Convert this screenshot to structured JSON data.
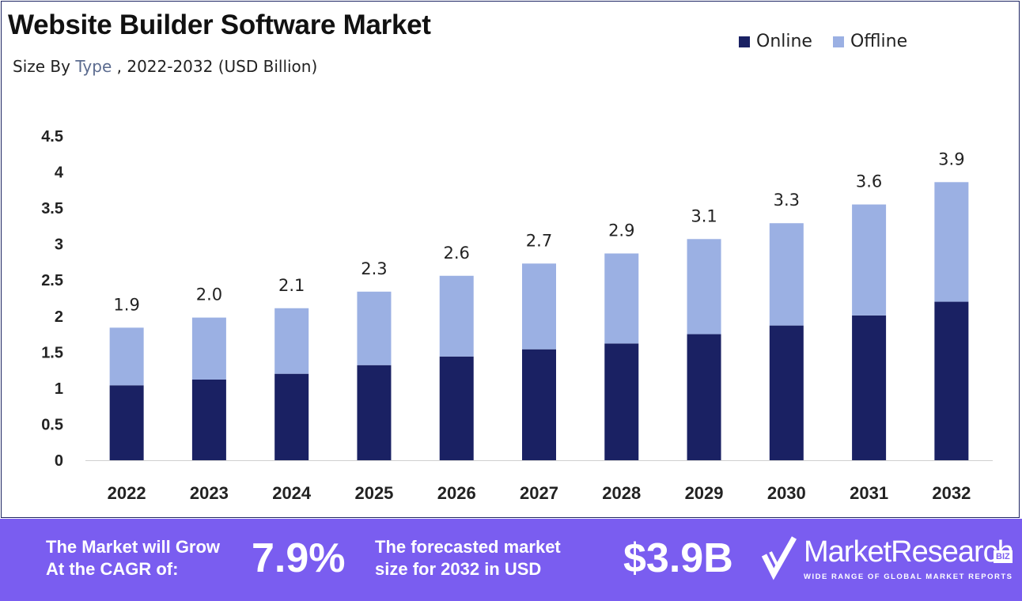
{
  "chart_data": {
    "type": "bar",
    "stacked": true,
    "title": "Website Builder Software Market",
    "subtitle_prefix": "Size By ",
    "subtitle_highlight": "Type",
    "subtitle_suffix": " , 2022-2032 (USD Billion)",
    "categories": [
      "2022",
      "2023",
      "2024",
      "2025",
      "2026",
      "2027",
      "2028",
      "2029",
      "2030",
      "2031",
      "2032"
    ],
    "series": [
      {
        "name": "Online",
        "color": "#1a2163",
        "values": [
          1.04,
          1.12,
          1.2,
          1.32,
          1.44,
          1.54,
          1.62,
          1.75,
          1.87,
          2.01,
          2.2
        ]
      },
      {
        "name": "Offline",
        "color": "#9bb0e3",
        "values": [
          0.8,
          0.86,
          0.91,
          1.02,
          1.12,
          1.19,
          1.25,
          1.32,
          1.42,
          1.54,
          1.66
        ]
      }
    ],
    "totals": [
      "1.9",
      "2.0",
      "2.1",
      "2.3",
      "2.6",
      "2.7",
      "2.9",
      "3.1",
      "3.3",
      "3.6",
      "3.9"
    ],
    "yticks": [
      "0",
      "0.5",
      "1",
      "1.5",
      "2",
      "2.5",
      "3",
      "3.5",
      "4",
      "4.5"
    ],
    "ylim": [
      0,
      4.5
    ],
    "grid": false,
    "legend_position": "top-right"
  },
  "banner": {
    "cagr_label_line1": "The Market will Grow",
    "cagr_label_line2": "At the CAGR of:",
    "cagr_value": "7.9%",
    "forecast_label_line1": "The forecasted market",
    "forecast_label_line2": "size for 2032 in USD",
    "forecast_value": "$3.9B",
    "logo_name": "MarketResearch",
    "logo_badge": "BIZ",
    "logo_tagline": "WIDE RANGE OF GLOBAL MARKET REPORTS",
    "background_color": "#7a5df0"
  }
}
